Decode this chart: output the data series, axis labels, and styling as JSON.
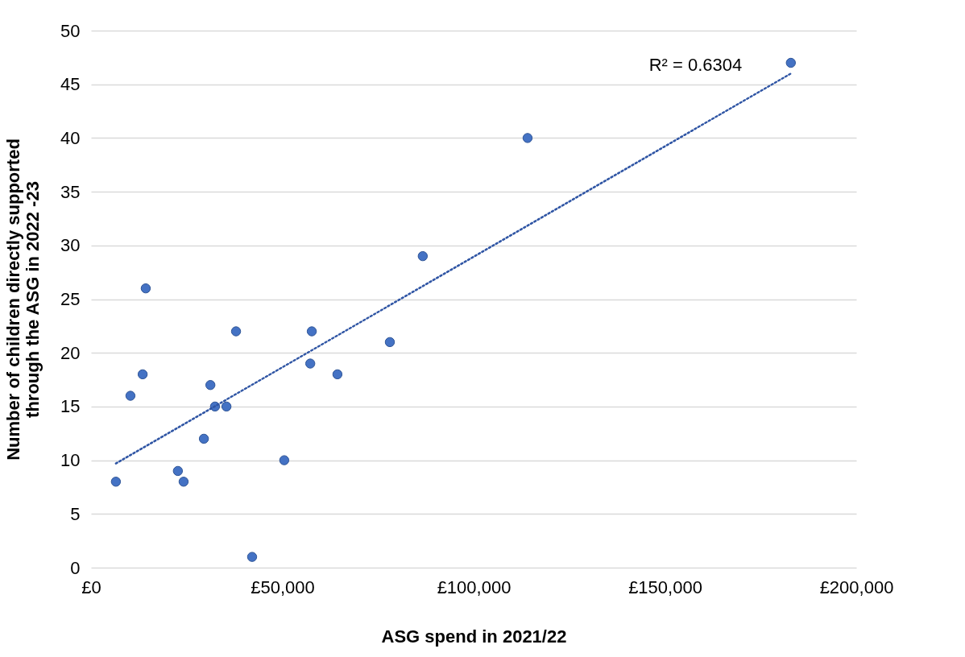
{
  "chart_data": {
    "type": "scatter",
    "xlabel": "ASG spend in 2021/22",
    "ylabel": "Number of children directly supported through the ASG in 2022 -23",
    "xlim": [
      0,
      200000
    ],
    "xticks": [
      {
        "value": 0,
        "label": "£0"
      },
      {
        "value": 50000,
        "label": "£50,000"
      },
      {
        "value": 100000,
        "label": "£100,000"
      },
      {
        "value": 150000,
        "label": "£150,000"
      },
      {
        "value": 200000,
        "label": "£200,000"
      }
    ],
    "ylim": [
      0,
      50
    ],
    "yticks": [
      0,
      5,
      10,
      15,
      20,
      25,
      30,
      35,
      40,
      45,
      50
    ],
    "grid": "y",
    "marker": "circle",
    "annotations": [
      "R² = 0.6304"
    ],
    "series": [
      {
        "color": "#4472c4",
        "x": [
          6500,
          10300,
          13500,
          14300,
          22700,
          24200,
          29500,
          31200,
          32400,
          35400,
          37900,
          42100,
          50500,
          57300,
          57700,
          64400,
          78100,
          86700,
          114100,
          182900
        ],
        "values": [
          8,
          16,
          18,
          26,
          9,
          8,
          12,
          17,
          15,
          15,
          22,
          1,
          10,
          19,
          22,
          18,
          21,
          29,
          40,
          47
        ]
      },
      {
        "type": "line",
        "color": "#2f55a4",
        "line_style": "dotted",
        "marker": "none",
        "x": [
          6500,
          182900
        ],
        "values": [
          9.7,
          46
        ]
      }
    ]
  }
}
